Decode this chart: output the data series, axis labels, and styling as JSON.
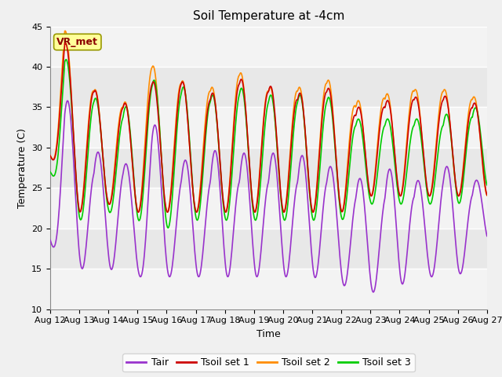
{
  "title": "Soil Temperature at -4cm",
  "xlabel": "Time",
  "ylabel": "Temperature (C)",
  "ylim": [
    10,
    45
  ],
  "yticks": [
    10,
    15,
    20,
    25,
    30,
    35,
    40,
    45
  ],
  "x_tick_labels": [
    "Aug 12",
    "Aug 13",
    "Aug 14",
    "Aug 15",
    "Aug 16",
    "Aug 17",
    "Aug 18",
    "Aug 19",
    "Aug 20",
    "Aug 21",
    "Aug 22",
    "Aug 23",
    "Aug 24",
    "Aug 25",
    "Aug 26",
    "Aug 27"
  ],
  "colors": {
    "Tair": "#9933CC",
    "Tsoil1": "#CC0000",
    "Tsoil2": "#FF8C00",
    "Tsoil3": "#00CC00"
  },
  "legend_labels": [
    "Tair",
    "Tsoil set 1",
    "Tsoil set 2",
    "Tsoil set 3"
  ],
  "annotation_text": "VR_met",
  "annotation_color": "#8B0000",
  "annotation_bg": "#FFFF99",
  "bg_color": "#E8E8E8",
  "grid_color": "white",
  "title_fontsize": 11,
  "label_fontsize": 9,
  "tick_fontsize": 8,
  "legend_fontsize": 9
}
